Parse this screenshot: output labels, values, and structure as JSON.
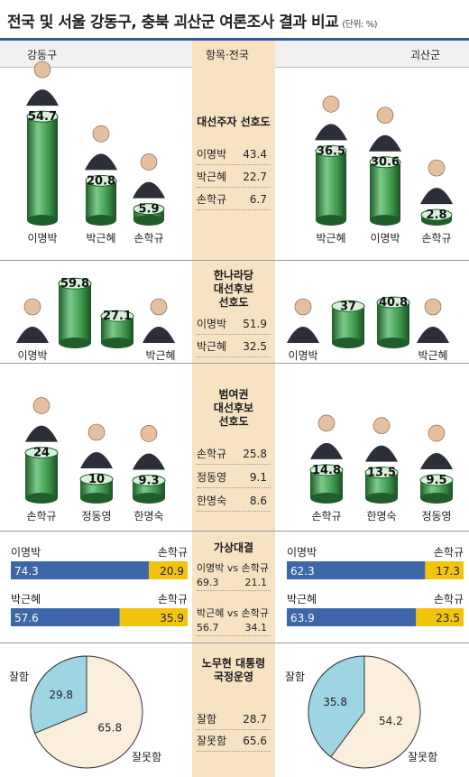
{
  "header": {
    "title": "전국 및 서울 강동구, 충북 괴산군 여론조사 결과 비교",
    "unit": "(단위: %)",
    "left": "강동구",
    "middle": "항목·전국",
    "right": "괴산군"
  },
  "colors": {
    "cylinder": "#3f9a4d",
    "blue": "#3d67a8",
    "yellow": "#f2c20d",
    "pie_blue": "#9fd4e2",
    "pie_cream": "#fbeedd",
    "middle_column": "#f7e2c2"
  },
  "sections": {
    "s1": {
      "title": "대선주자 선호도",
      "national": [
        {
          "name": "이명박",
          "value": "43.4"
        },
        {
          "name": "박근혜",
          "value": "22.7"
        },
        {
          "name": "손학규",
          "value": "6.7"
        }
      ]
    },
    "s2": {
      "title": "한나라당 대선후보 선호도",
      "title_lines": [
        "한나라당",
        "대선후보",
        "선호도"
      ],
      "national": [
        {
          "name": "이명박",
          "value": "51.9"
        },
        {
          "name": "박근혜",
          "value": "32.5"
        }
      ]
    },
    "s3": {
      "title": "범여권 대선후보 선호도",
      "title_lines": [
        "범여권",
        "대선후보",
        "선호도"
      ],
      "national": [
        {
          "name": "손학규",
          "value": "25.8"
        },
        {
          "name": "정동영",
          "value": "9.1"
        },
        {
          "name": "한명숙",
          "value": "8.6"
        }
      ]
    },
    "s4": {
      "title": "가상대결",
      "national": [
        {
          "a": "이명박",
          "vs": "vs",
          "b": "손학규",
          "va": "69.3",
          "vb": "21.1"
        },
        {
          "a": "박근혜",
          "vs": "vs",
          "b": "손학규",
          "va": "56.7",
          "vb": "34.1"
        }
      ]
    },
    "s5": {
      "title": "노무현 대통령 국정운영",
      "title_lines": [
        "노무현 대통령",
        "국정운영"
      ],
      "national": [
        {
          "name": "잘함",
          "value": "28.7"
        },
        {
          "name": "잘못함",
          "value": "65.6"
        }
      ]
    }
  },
  "chart_data": [
    {
      "type": "bar",
      "title": "대선주자 선호도",
      "region": "강동구",
      "categories": [
        "이명박",
        "박근혜",
        "손학규"
      ],
      "values": [
        54.7,
        20.8,
        5.9
      ]
    },
    {
      "type": "bar",
      "title": "대선주자 선호도",
      "region": "괴산군",
      "categories": [
        "박근혜",
        "이명박",
        "손학규"
      ],
      "values": [
        36.5,
        30.6,
        2.8
      ]
    },
    {
      "type": "bar",
      "title": "한나라당 대선후보 선호도",
      "region": "강동구",
      "categories": [
        "이명박",
        "박근혜"
      ],
      "values": [
        59.8,
        27.1
      ]
    },
    {
      "type": "bar",
      "title": "한나라당 대선후보 선호도",
      "region": "괴산군",
      "categories": [
        "이명박",
        "박근혜"
      ],
      "values": [
        37.0,
        40.8
      ]
    },
    {
      "type": "bar",
      "title": "범여권 대선후보 선호도",
      "region": "강동구",
      "categories": [
        "손학규",
        "정동영",
        "한명숙"
      ],
      "values": [
        24.0,
        10.0,
        9.3
      ]
    },
    {
      "type": "bar",
      "title": "범여권 대선후보 선호도",
      "region": "괴산군",
      "categories": [
        "손학규",
        "한명숙",
        "정동영"
      ],
      "values": [
        14.8,
        13.5,
        9.5
      ]
    },
    {
      "type": "bar",
      "title": "가상대결",
      "region": "강동구",
      "matchups": [
        {
          "a": "이명박",
          "b": "손학규",
          "va": 74.3,
          "vb": 20.9
        },
        {
          "a": "박근혜",
          "b": "손학규",
          "va": 57.6,
          "vb": 35.9
        }
      ]
    },
    {
      "type": "bar",
      "title": "가상대결",
      "region": "괴산군",
      "matchups": [
        {
          "a": "이명박",
          "b": "손학규",
          "va": 62.3,
          "vb": 17.3
        },
        {
          "a": "박근혜",
          "b": "손학규",
          "va": 63.9,
          "vb": 23.5
        }
      ]
    },
    {
      "type": "pie",
      "title": "노무현 대통령 국정운영",
      "region": "강동구",
      "categories": [
        "잘함",
        "잘못함"
      ],
      "values": [
        29.8,
        65.8
      ]
    },
    {
      "type": "pie",
      "title": "노무현 대통령 국정운영",
      "region": "괴산군",
      "categories": [
        "잘함",
        "잘못함"
      ],
      "values": [
        35.8,
        54.2
      ]
    }
  ]
}
